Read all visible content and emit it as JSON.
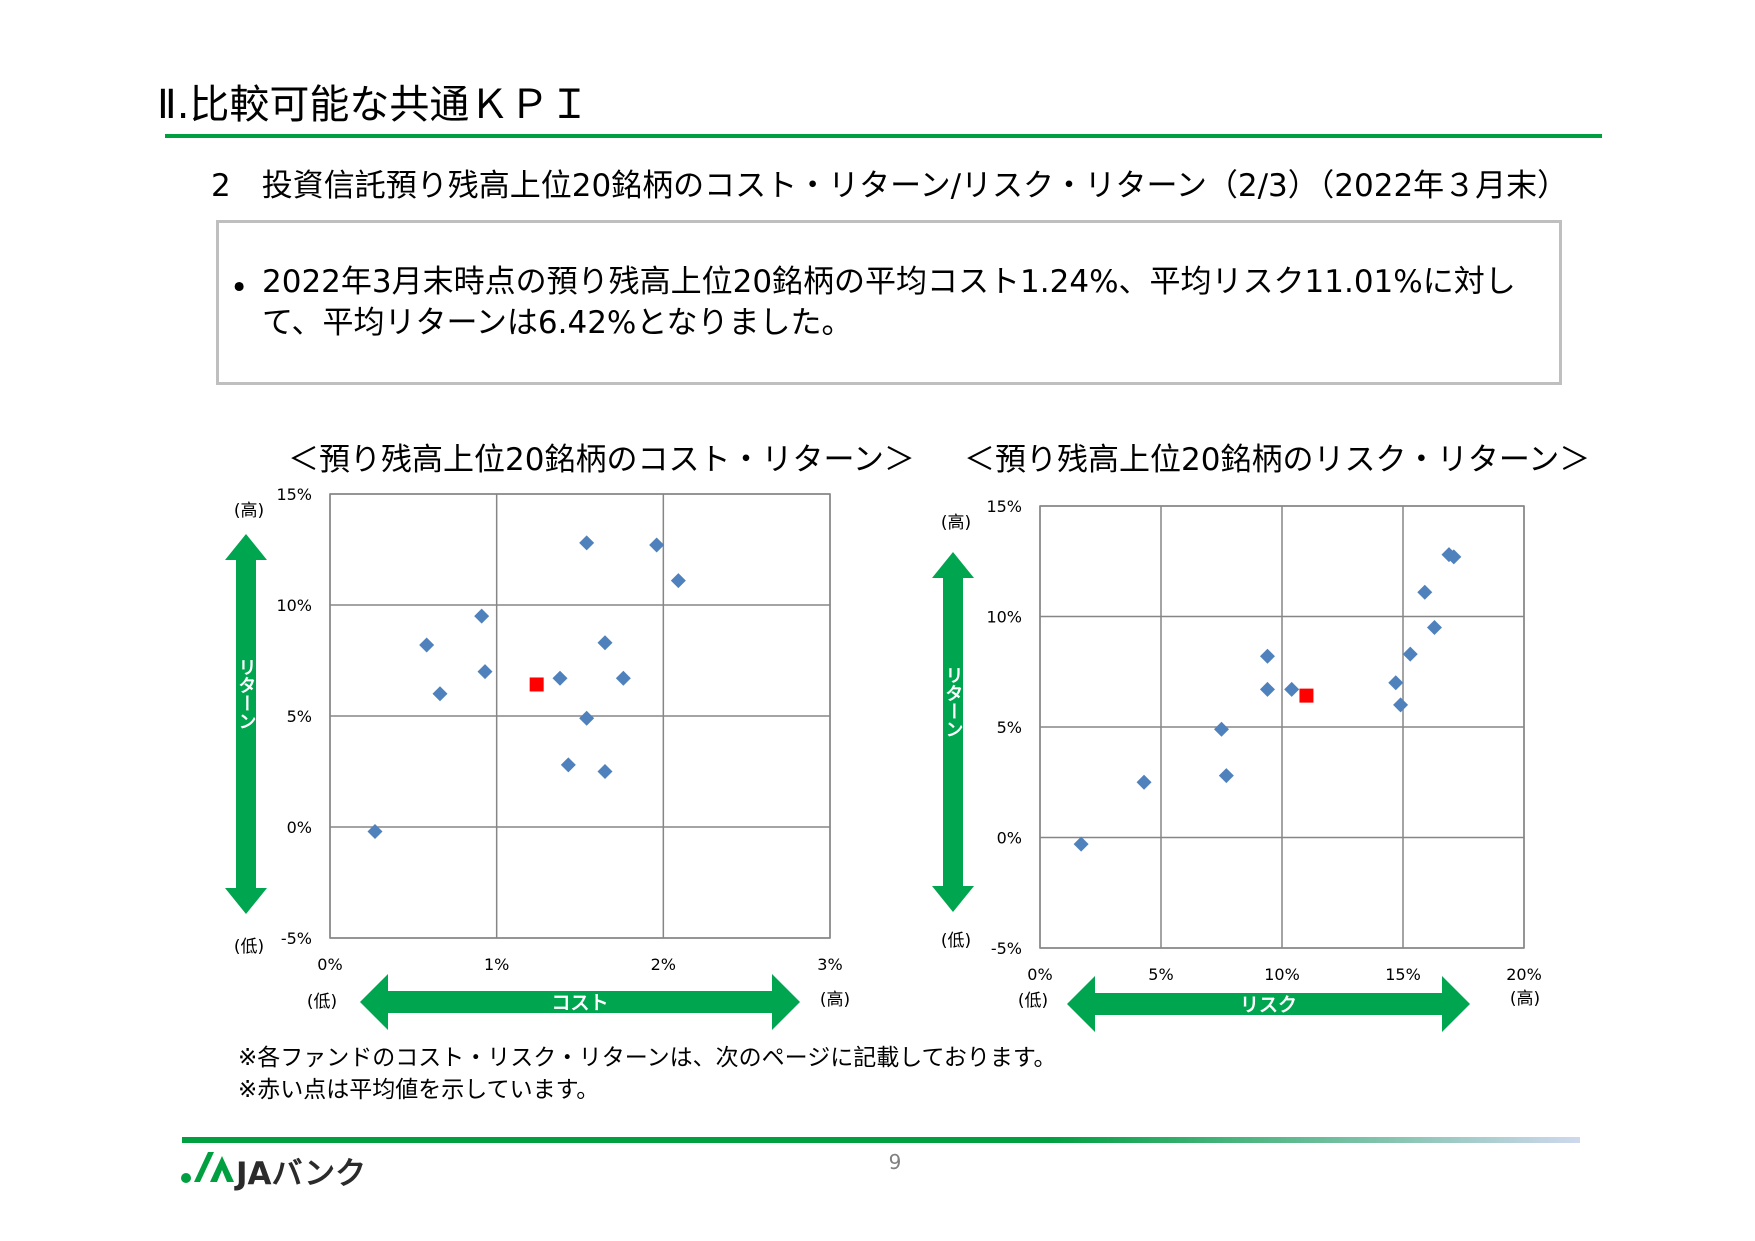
{
  "header": {
    "title": "Ⅱ.比較可能な共通ＫＰＩ",
    "subtitle": "2　投資信託預り残高上位20銘柄のコスト・リターン/リスク・リターン（2/3）（2022年３月末）"
  },
  "summary": {
    "bullet": "•",
    "text": "2022年3月末時点の預り残高上位20銘柄の平均コスト1.24%、平均リスク11.01%に対して、平均リターンは6.42%となりました。"
  },
  "chart_data": [
    {
      "type": "scatter",
      "title": "＜預り残高上位20銘柄のコスト・リターン＞",
      "xlabel": "コスト",
      "ylabel": "リターン",
      "x_low_label": "(低)",
      "x_high_label": "(高)",
      "y_low_label": "(低)",
      "y_high_label": "(高)",
      "xlim": [
        0,
        3
      ],
      "ylim": [
        -5,
        15
      ],
      "x_ticks": [
        0,
        1,
        2,
        3
      ],
      "y_ticks": [
        -5,
        0,
        5,
        10,
        15
      ],
      "x_tick_labels": [
        "0%",
        "1%",
        "2%",
        "3%"
      ],
      "y_tick_labels": [
        "-5%",
        "0%",
        "5%",
        "10%",
        "15%"
      ],
      "grid": true,
      "points": [
        {
          "x": 0.27,
          "y": -0.2
        },
        {
          "x": 0.58,
          "y": 8.2
        },
        {
          "x": 0.66,
          "y": 6.0
        },
        {
          "x": 0.91,
          "y": 9.5
        },
        {
          "x": 0.93,
          "y": 7.0
        },
        {
          "x": 1.38,
          "y": 6.7
        },
        {
          "x": 1.43,
          "y": 2.8
        },
        {
          "x": 1.54,
          "y": 12.8
        },
        {
          "x": 1.54,
          "y": 4.9
        },
        {
          "x": 1.65,
          "y": 8.3
        },
        {
          "x": 1.65,
          "y": 2.5
        },
        {
          "x": 1.76,
          "y": 6.7
        },
        {
          "x": 1.96,
          "y": 12.7
        },
        {
          "x": 2.09,
          "y": 11.1
        }
      ],
      "average": {
        "x": 1.24,
        "y": 6.42
      },
      "point_color": "#4f81bd",
      "average_color": "#ff0000",
      "arrow_color": "#00a550"
    },
    {
      "type": "scatter",
      "title": "＜預り残高上位20銘柄のリスク・リターン＞",
      "xlabel": "リスク",
      "ylabel": "リターン",
      "x_low_label": "(低)",
      "x_high_label": "(高)",
      "y_low_label": "(低)",
      "y_high_label": "(高)",
      "xlim": [
        0,
        20
      ],
      "ylim": [
        -5,
        15
      ],
      "x_ticks": [
        0,
        5,
        10,
        15,
        20
      ],
      "y_ticks": [
        -5,
        0,
        5,
        10,
        15
      ],
      "x_tick_labels": [
        "0%",
        "5%",
        "10%",
        "15%",
        "20%"
      ],
      "y_tick_labels": [
        "-5%",
        "0%",
        "5%",
        "10%",
        "15%"
      ],
      "grid": true,
      "points": [
        {
          "x": 1.7,
          "y": -0.3
        },
        {
          "x": 4.3,
          "y": 2.5
        },
        {
          "x": 7.5,
          "y": 4.9
        },
        {
          "x": 7.7,
          "y": 2.8
        },
        {
          "x": 9.4,
          "y": 8.2
        },
        {
          "x": 9.4,
          "y": 6.7
        },
        {
          "x": 10.4,
          "y": 6.7
        },
        {
          "x": 14.7,
          "y": 7.0
        },
        {
          "x": 14.9,
          "y": 6.0
        },
        {
          "x": 15.3,
          "y": 8.3
        },
        {
          "x": 15.9,
          "y": 11.1
        },
        {
          "x": 16.3,
          "y": 9.5
        },
        {
          "x": 16.9,
          "y": 12.8
        },
        {
          "x": 17.1,
          "y": 12.7
        }
      ],
      "average": {
        "x": 11.01,
        "y": 6.42
      },
      "point_color": "#4f81bd",
      "average_color": "#ff0000",
      "arrow_color": "#00a550"
    }
  ],
  "notes": [
    "※各ファンドのコスト・リスク・リターンは、次のページに記載しております。",
    "※赤い点は平均値を示しています。"
  ],
  "footer": {
    "page_number": "9",
    "logo_text": "JAバンク",
    "brand_color": "#00a040"
  }
}
